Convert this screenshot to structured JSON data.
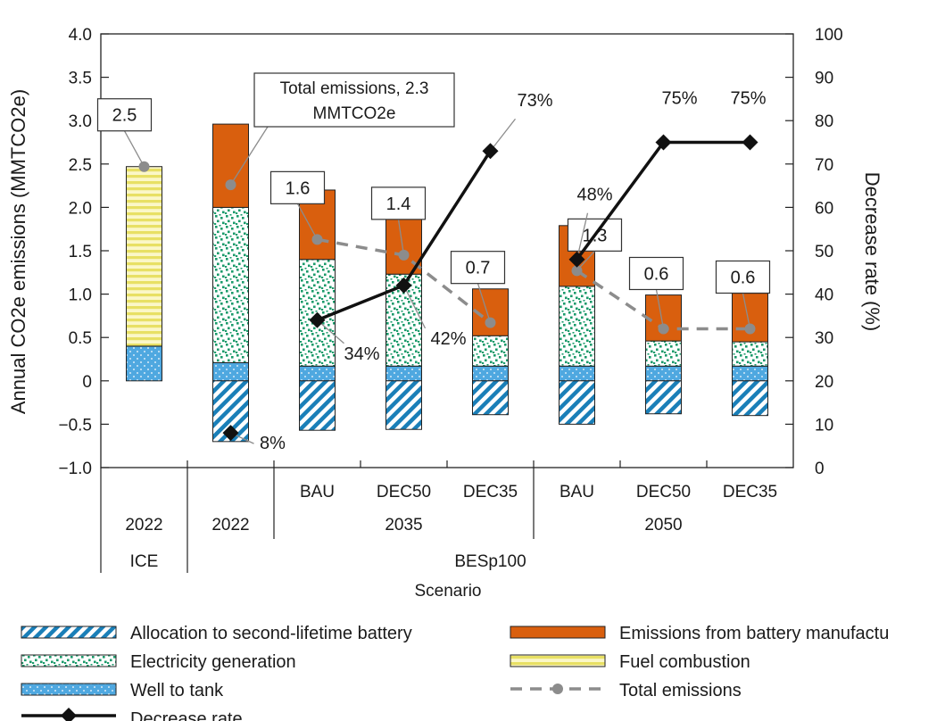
{
  "chart_data": {
    "type": "bar",
    "stacked": true,
    "ylabel": "Annual CO2e emissions (MMTCO2e)",
    "y2label": "Decrease rate (%)",
    "xlabel": "Scenario",
    "ylim": [
      -1.0,
      4.0
    ],
    "y2lim": [
      0,
      100
    ],
    "y_ticks": [
      "4.0",
      "3.5",
      "3.0",
      "2.5",
      "2.0",
      "1.5",
      "1.0",
      "0.5",
      "0",
      "−0.5",
      "−1.0"
    ],
    "y2_ticks": [
      "100",
      "90",
      "80",
      "70",
      "60",
      "50",
      "40",
      "30",
      "20",
      "10",
      "0"
    ],
    "categories": [
      {
        "scenario": "",
        "year": "2022",
        "group": "ICE"
      },
      {
        "scenario": "",
        "year": "2022",
        "group": "BESp100"
      },
      {
        "scenario": "BAU",
        "year": "2035",
        "group": "BESp100"
      },
      {
        "scenario": "DEC50",
        "year": "2035",
        "group": "BESp100"
      },
      {
        "scenario": "DEC35",
        "year": "2035",
        "group": "BESp100"
      },
      {
        "scenario": "BAU",
        "year": "2050",
        "group": "BESp100"
      },
      {
        "scenario": "DEC50",
        "year": "2050",
        "group": "BESp100"
      },
      {
        "scenario": "DEC35",
        "year": "2050",
        "group": "BESp100"
      }
    ],
    "year_labels": [
      "2022",
      "2022",
      "2035",
      "2050"
    ],
    "group_labels": [
      "ICE",
      "BESp100"
    ],
    "series": [
      {
        "name": "Allocation to second-lifetime battery",
        "pattern": "hatch",
        "color": "#1a7fb8",
        "values": [
          0,
          -0.7,
          -0.57,
          -0.56,
          -0.39,
          -0.5,
          -0.38,
          -0.4
        ]
      },
      {
        "name": "Well to tank",
        "pattern": "dots",
        "color": "#4fa8e0",
        "values": [
          0.4,
          0.21,
          0.17,
          0.17,
          0.17,
          0.17,
          0.17,
          0.17
        ]
      },
      {
        "name": "Electricity generation",
        "pattern": "confetti",
        "color": "#1a9a6a",
        "values": [
          0,
          1.79,
          1.23,
          1.06,
          0.35,
          0.92,
          0.29,
          0.28
        ]
      },
      {
        "name": "Emissions from battery manufacturing",
        "pattern": "solid",
        "color": "#d95f0e",
        "values": [
          0,
          0.96,
          0.8,
          0.76,
          0.54,
          0.7,
          0.53,
          0.56
        ]
      },
      {
        "name": "Fuel combustion",
        "pattern": "stripes",
        "color": "#e8e064",
        "values": [
          2.07,
          0,
          0,
          0,
          0,
          0,
          0,
          0
        ]
      }
    ],
    "total_emissions": {
      "name": "Total emissions",
      "values": [
        2.47,
        2.26,
        1.63,
        1.45,
        0.67,
        1.27,
        0.6,
        0.6
      ],
      "labels": [
        "2.5",
        null,
        "1.6",
        "1.4",
        "0.7",
        "1.3",
        "0.6",
        "0.6"
      ]
    },
    "decrease_rate": {
      "name": "Decrease rate",
      "values": [
        null,
        8,
        34,
        42,
        73,
        48,
        75,
        75
      ],
      "labels": [
        "",
        "8%",
        "34%",
        "42%",
        "73%",
        "48%",
        "75%",
        "75%"
      ]
    },
    "annotations": {
      "total_line1": "Total emissions, 2.3",
      "total_line2": "MMTCO2e"
    },
    "legend": [
      {
        "label": "Allocation to second-lifetime battery",
        "key": "hatch"
      },
      {
        "label": "Emissions from battery manufactu",
        "key": "solid"
      },
      {
        "label": "Electricity generation",
        "key": "confetti"
      },
      {
        "label": "Fuel combustion",
        "key": "stripes"
      },
      {
        "label": "Well to tank",
        "key": "dots"
      },
      {
        "label": "Total emissions",
        "key": "total"
      },
      {
        "label": "Decrease rate",
        "key": "rate"
      }
    ]
  }
}
